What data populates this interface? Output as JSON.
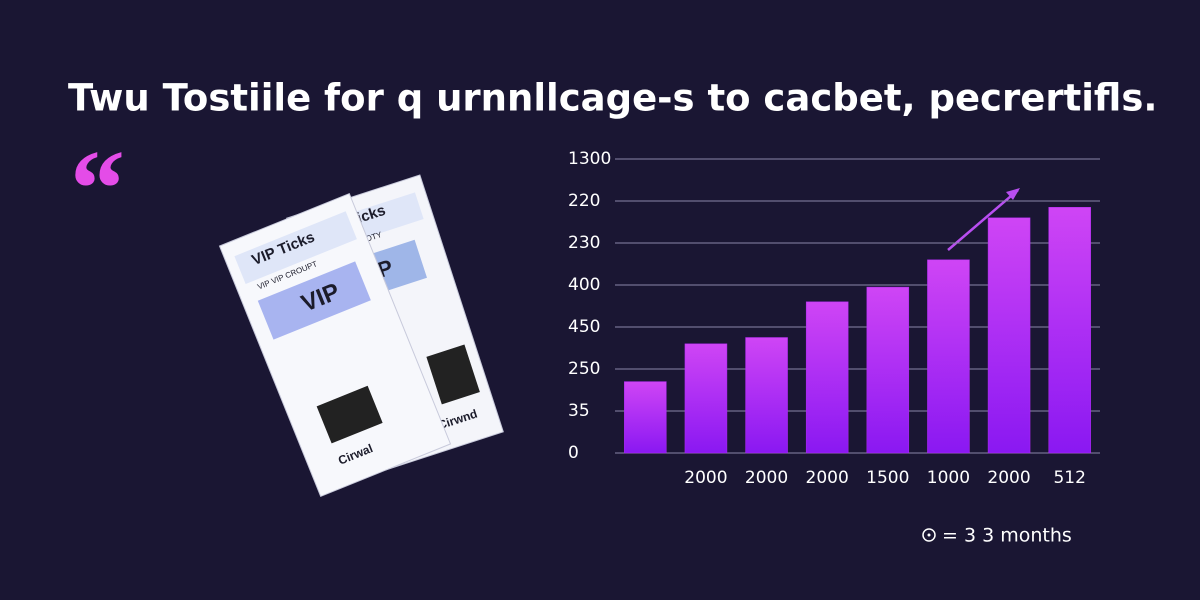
{
  "title": "Twu Tostiile for q urnnllcage-s to cacbet, pecrertifls.",
  "tickets": [
    {
      "heading": "VIP Ticks",
      "subheading": "VIP VIP CROUPT",
      "badge": "VIP",
      "footer": "Cirwal"
    },
    {
      "heading": "VIP Ticks",
      "subheading": "VIP FE FEDBOTY",
      "badge": "VIP",
      "footer": "Cirwnd"
    }
  ],
  "legend_note": "= 3 3 months",
  "chart_data": {
    "type": "bar",
    "categories": [
      null,
      "2000",
      "2000",
      "2000",
      "1500",
      "1000",
      "2000",
      "512"
    ],
    "values": [
      1.7,
      2.6,
      2.75,
      3.6,
      3.95,
      4.6,
      5.6,
      5.85
    ],
    "color": "#b02cf2",
    "ylim": [
      0,
      7
    ],
    "yticks": [
      {
        "value": 0,
        "label": "0"
      },
      {
        "value": 1,
        "label": "35"
      },
      {
        "value": 2,
        "label": "250"
      },
      {
        "value": 3,
        "label": "450"
      },
      {
        "value": 4,
        "label": "400"
      },
      {
        "value": 5,
        "label": "230"
      },
      {
        "value": 6,
        "label": "220"
      },
      {
        "value": 7,
        "label": "1300"
      }
    ],
    "grid": true
  }
}
